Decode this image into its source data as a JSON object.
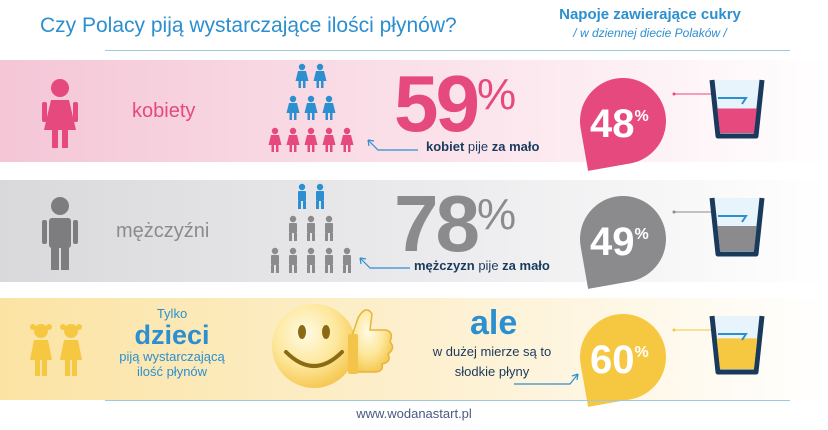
{
  "header": {
    "title": "Czy Polacy piją wystarczające ilości płynów?",
    "sugar_title": "Napoje zawierające cukry",
    "sugar_subtitle": "/ w dziennej diecie Polaków /"
  },
  "women": {
    "label": "kobiety",
    "percent": "59",
    "percent_sign": "%",
    "caption_bold": "kobiet",
    "caption_rest": " pije ",
    "caption_bold2": "za mało",
    "sugar_percent": "48",
    "sugar_sign": "%",
    "sugar_fill_fraction": 0.48,
    "color": "#e5497e"
  },
  "men": {
    "label": "mężczyźni",
    "percent": "78",
    "percent_sign": "%",
    "caption_bold": "mężczyzn",
    "caption_rest": " pije ",
    "caption_bold2": "za mało",
    "sugar_percent": "49",
    "sugar_sign": "%",
    "sugar_fill_fraction": 0.49,
    "color": "#8b8b8e"
  },
  "kids": {
    "line1": "Tylko",
    "line2": "dzieci",
    "line3": "piją wystarczającą",
    "line4": "ilość płynów",
    "ale": "ale",
    "ale_line1": "w dużej mierze są to",
    "ale_line2": "słodkie płyny",
    "sugar_percent": "60",
    "sugar_sign": "%",
    "sugar_fill_fraction": 0.6,
    "color": "#f6c842"
  },
  "footer": {
    "url": "www.wodanastart.pl"
  },
  "colors": {
    "blue": "#2c8fcf",
    "pink": "#e5497e",
    "gray": "#8b8b8e",
    "yellow": "#f6c842",
    "navy": "#1a3a5c"
  }
}
